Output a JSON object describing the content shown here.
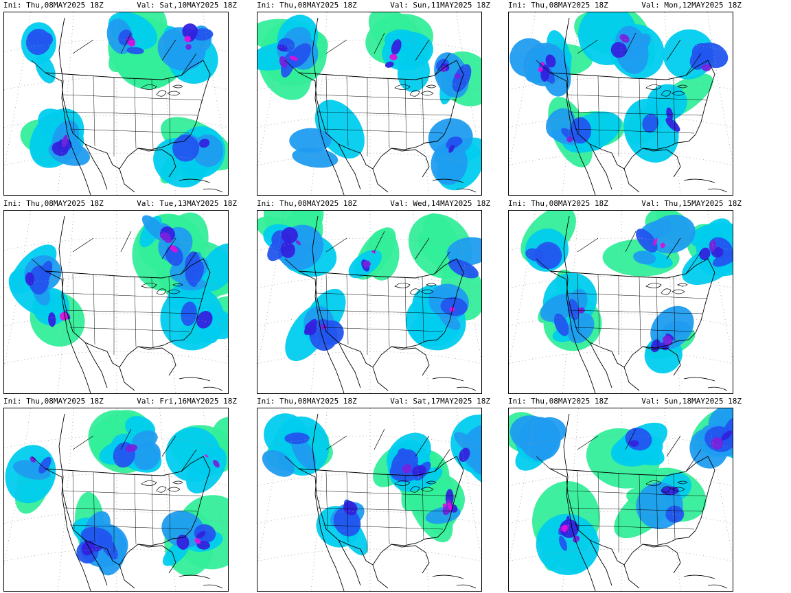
{
  "panels": [
    {
      "ini": "Ini: Thu,08MAY2025 18Z",
      "val": "Val: Sat,10MAY2025 18Z",
      "seed": 11
    },
    {
      "ini": "Ini: Thu,08MAY2025 18Z",
      "val": "Val: Sun,11MAY2025 18Z",
      "seed": 23
    },
    {
      "ini": "Ini: Thu,08MAY2025 18Z",
      "val": "Val: Mon,12MAY2025 18Z",
      "seed": 37
    },
    {
      "ini": "Ini: Thu,08MAY2025 18Z",
      "val": "Val: Tue,13MAY2025 18Z",
      "seed": 41
    },
    {
      "ini": "Ini: Thu,08MAY2025 18Z",
      "val": "Val: Wed,14MAY2025 18Z",
      "seed": 53
    },
    {
      "ini": "Ini: Thu,08MAY2025 18Z",
      "val": "Val: Thu,15MAY2025 18Z",
      "seed": 67
    },
    {
      "ini": "Ini: Thu,08MAY2025 18Z",
      "val": "Val: Fri,16MAY2025 18Z",
      "seed": 71
    },
    {
      "ini": "Ini: Thu,08MAY2025 18Z",
      "val": "Val: Sat,17MAY2025 18Z",
      "seed": 89
    },
    {
      "ini": "Ini: Thu,08MAY2025 18Z",
      "val": "Val: Sun,18MAY2025 18Z",
      "seed": 97
    }
  ],
  "colors": {
    "light_green": "#33ee99",
    "cyan": "#00ccee",
    "light_blue": "#1f9cf0",
    "blue": "#2255ee",
    "dark_blue": "#3322dd",
    "violet": "#7722dd",
    "magenta": "#dd11dd",
    "dark_magenta": "#991177",
    "outline": "#000000",
    "grid_dots": "#999999"
  }
}
